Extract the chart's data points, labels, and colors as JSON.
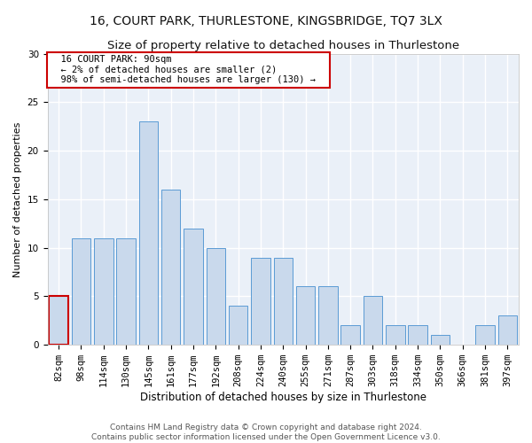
{
  "title1": "16, COURT PARK, THURLESTONE, KINGSBRIDGE, TQ7 3LX",
  "title2": "Size of property relative to detached houses in Thurlestone",
  "xlabel": "Distribution of detached houses by size in Thurlestone",
  "ylabel": "Number of detached properties",
  "categories": [
    "82sqm",
    "98sqm",
    "114sqm",
    "130sqm",
    "145sqm",
    "161sqm",
    "177sqm",
    "192sqm",
    "208sqm",
    "224sqm",
    "240sqm",
    "255sqm",
    "271sqm",
    "287sqm",
    "303sqm",
    "318sqm",
    "334sqm",
    "350sqm",
    "366sqm",
    "381sqm",
    "397sqm"
  ],
  "values": [
    5,
    11,
    11,
    11,
    23,
    16,
    12,
    10,
    4,
    9,
    9,
    6,
    6,
    2,
    5,
    2,
    2,
    1,
    0,
    2,
    3
  ],
  "bar_color": "#c9d9ec",
  "bar_edge_color": "#5b9bd5",
  "annotation_box_text": "  16 COURT PARK: 90sqm  \n  ← 2% of detached houses are smaller (2)  \n  98% of semi-detached houses are larger (130) →  ",
  "annotation_box_color": "#ffffff",
  "annotation_box_edge_color": "#cc0000",
  "highlight_bar_index": 0,
  "highlight_bar_edge_color": "#cc0000",
  "ylim": [
    0,
    30
  ],
  "yticks": [
    0,
    5,
    10,
    15,
    20,
    25,
    30
  ],
  "footer1": "Contains HM Land Registry data © Crown copyright and database right 2024.",
  "footer2": "Contains public sector information licensed under the Open Government Licence v3.0.",
  "bg_color": "#ffffff",
  "plot_bg_color": "#eaf0f8",
  "grid_color": "#ffffff",
  "title1_fontsize": 10,
  "title2_fontsize": 9.5,
  "xlabel_fontsize": 8.5,
  "ylabel_fontsize": 8,
  "tick_fontsize": 7.5,
  "footer_fontsize": 6.5,
  "annot_fontsize": 7.5
}
